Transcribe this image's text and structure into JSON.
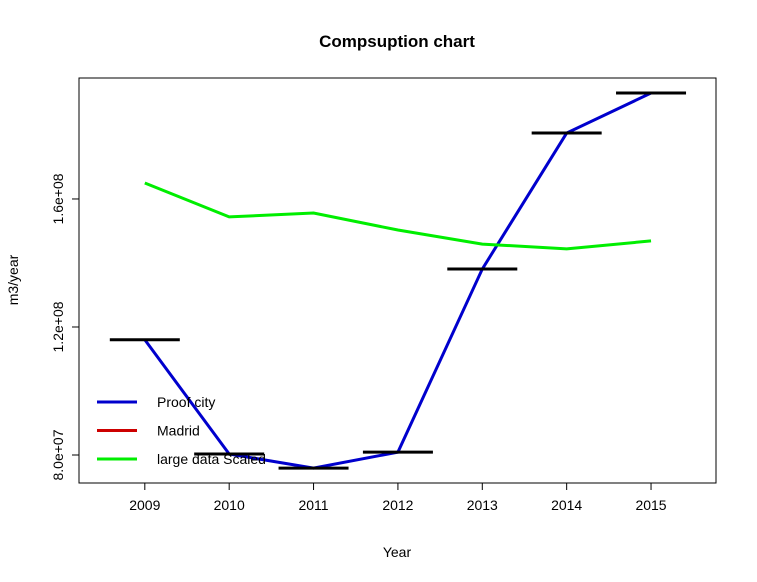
{
  "chart_data": {
    "type": "line",
    "title": "Compsuption chart",
    "x_label": "Year",
    "y_label": "m3/year",
    "x": [
      2009,
      2010,
      2011,
      2012,
      2013,
      2014,
      2015
    ],
    "xlim": [
      2008.22,
      2015.77
    ],
    "xticks": [
      2009,
      2010,
      2011,
      2012,
      2013,
      2014,
      2015
    ],
    "ylim": [
      71250000,
      197800000
    ],
    "yticks": [
      {
        "value": 80000000,
        "label": "8.0e+07"
      },
      {
        "value": 120000000,
        "label": "1.2e+08"
      },
      {
        "value": 160000000,
        "label": "1.6e+08"
      }
    ],
    "legend": "bottomleft",
    "series": [
      {
        "name": "Proof city",
        "color": "#0000cd",
        "values": [
          116000000,
          80300000,
          75900000,
          80900000,
          138100000,
          180600000,
          193100000
        ]
      },
      {
        "name": "Madrid",
        "color": "#cd0000",
        "values": [
          null,
          null,
          null,
          null,
          null,
          null,
          null
        ]
      },
      {
        "name": "large data Scaled",
        "color": "#00ee00",
        "values": [
          165000000,
          154400000,
          155600000,
          150300000,
          145900000,
          144400000,
          146900000
        ]
      }
    ]
  }
}
